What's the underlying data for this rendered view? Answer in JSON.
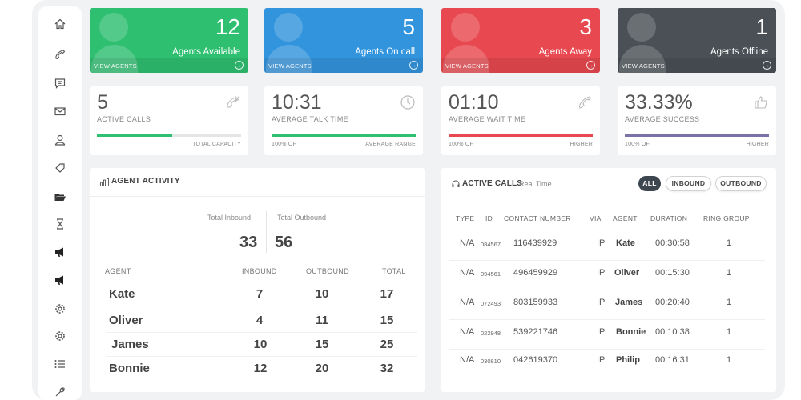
{
  "colors": {
    "green": "#2fbf71",
    "blue": "#3294dd",
    "red": "#e8484f",
    "gray": "#4a5056",
    "purple": "#7a73a8"
  },
  "sidebar": {
    "items": [
      {
        "name": "home-icon"
      },
      {
        "name": "phone-icon"
      },
      {
        "name": "chat-icon"
      },
      {
        "name": "mail-icon"
      },
      {
        "name": "user-icon"
      },
      {
        "name": "tag-icon"
      },
      {
        "name": "folder-icon"
      },
      {
        "name": "hourglass-icon"
      },
      {
        "name": "megaphone-icon"
      },
      {
        "name": "megaphone-icon"
      },
      {
        "name": "gear-icon"
      },
      {
        "name": "gear-icon"
      },
      {
        "name": "list-icon"
      },
      {
        "name": "wrench-icon"
      }
    ]
  },
  "status_cards": [
    {
      "value": "12",
      "label": "Agents Available",
      "link": "VIEW AGENTS",
      "color": "#2fbf71"
    },
    {
      "value": "5",
      "label": "Agents On call",
      "link": "VIEW AGENTS",
      "color": "#3294dd"
    },
    {
      "value": "3",
      "label": "Agents Away",
      "link": "VIEW AGENTS",
      "color": "#e8484f"
    },
    {
      "value": "1",
      "label": "Agents Offline",
      "link": "VIEW AGENTS",
      "color": "#4a5056"
    }
  ],
  "metrics": [
    {
      "value": "5",
      "label": "ACTIVE CALLS",
      "sub_left": "",
      "sub_right": "TOTAL CAPACITY",
      "progress": 0.52,
      "color": "#2fbf71",
      "icon": "phone-incoming-icon"
    },
    {
      "value": "10:31",
      "label": "AVERAGE TALK TIME",
      "sub_left": "100% OF",
      "sub_right": "AVERAGE RANGE",
      "progress": 1.0,
      "color": "#2fbf71",
      "icon": "clock-icon"
    },
    {
      "value": "01:10",
      "label": "AVERAGE WAIT TIME",
      "sub_left": "100% OF",
      "sub_right": "HIGHER",
      "progress": 1.0,
      "color": "#e8484f",
      "icon": "phone-icon"
    },
    {
      "value": "33.33%",
      "label": "AVERAGE SUCCESS",
      "sub_left": "100% OF",
      "sub_right": "HIGHER",
      "progress": 1.0,
      "color": "#7a73a8",
      "icon": "thumbs-up-icon"
    }
  ],
  "agent_activity": {
    "title": "AGENT ACTIVITY",
    "total_inbound_label": "Total Inbound",
    "total_outbound_label": "Total Outbound",
    "total_inbound": "33",
    "total_outbound": "56",
    "headers": {
      "agent": "AGENT",
      "inbound": "INBOUND",
      "outbound": "OUTBOUND",
      "total": "TOTAL"
    },
    "rows": [
      {
        "agent": "Kate",
        "inbound": "7",
        "outbound": "10",
        "total": "17"
      },
      {
        "agent": "Oliver",
        "inbound": "4",
        "outbound": "11",
        "total": "15"
      },
      {
        "agent": "James",
        "inbound": "10",
        "outbound": "15",
        "total": "25"
      },
      {
        "agent": "Bonnie",
        "inbound": "12",
        "outbound": "20",
        "total": "32"
      }
    ]
  },
  "active_calls": {
    "title": "ACTIVE CALLS",
    "subtitle": "Real Time",
    "filters": [
      "ALL",
      "INBOUND",
      "OUTBOUND"
    ],
    "active_filter": "ALL",
    "headers": {
      "type": "TYPE",
      "id": "ID",
      "contact": "CONTACT NUMBER",
      "via": "VIA",
      "agent": "AGENT",
      "duration": "DURATION",
      "ring_group": "RING GROUP"
    },
    "rows": [
      {
        "type": "N/A",
        "id": "084567",
        "contact": "116439929",
        "via": "IP",
        "agent": "Kate",
        "duration": "00:30:58",
        "ring_group": "1"
      },
      {
        "type": "N/A",
        "id": "094561",
        "contact": "496459929",
        "via": "IP",
        "agent": "Oliver",
        "duration": "00:15:30",
        "ring_group": "1"
      },
      {
        "type": "N/A",
        "id": "072493",
        "contact": "803159933",
        "via": "IP",
        "agent": "James",
        "duration": "00:20:40",
        "ring_group": "1"
      },
      {
        "type": "N/A",
        "id": "022948",
        "contact": "539221746",
        "via": "IP",
        "agent": "Bonnie",
        "duration": "00:10:38",
        "ring_group": "1"
      },
      {
        "type": "N/A",
        "id": "030810",
        "contact": "042619370",
        "via": "IP",
        "agent": "Philip",
        "duration": "00:16:31",
        "ring_group": "1"
      }
    ]
  }
}
